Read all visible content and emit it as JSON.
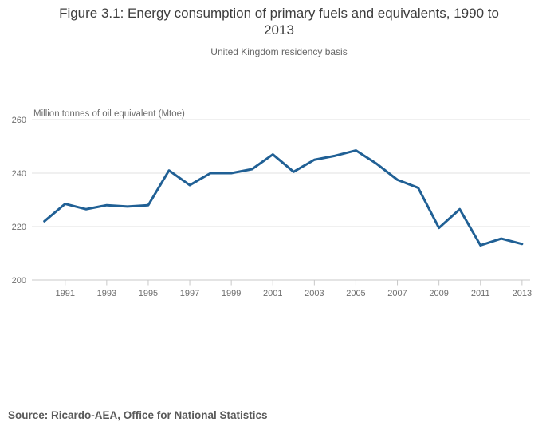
{
  "page": {
    "title": "Figure 3.1: Energy consumption of primary fuels and equivalents, 1990 to\n2013",
    "subtitle": "United Kingdom residency basis",
    "source": "Source: Ricardo-AEA, Office for National Statistics"
  },
  "colors": {
    "line": "#206095",
    "grid": "#e2e2e2",
    "axis": "#c8c8c8",
    "tick_label": "#6e6e6e",
    "title": "#3d3d3d",
    "subtitle": "#666666",
    "source": "#595959"
  },
  "chart_data": {
    "type": "line",
    "title": "Figure 3.1: Energy consumption of primary fuels and equivalents, 1990 to 2013",
    "subtitle": "United Kingdom residency basis",
    "ylabel": "Million tonnes of oil equivalent (Mtoe)",
    "xlabel": "",
    "x": [
      1990,
      1991,
      1992,
      1993,
      1994,
      1995,
      1996,
      1997,
      1998,
      1999,
      2000,
      2001,
      2002,
      2003,
      2004,
      2005,
      2006,
      2007,
      2008,
      2009,
      2010,
      2011,
      2012,
      2013
    ],
    "series": [
      {
        "name": "Energy consumption of primary fuels and equivalents",
        "values": [
          222,
          228.5,
          226.5,
          228,
          227.5,
          228,
          241,
          235.5,
          240,
          240,
          241.5,
          247,
          240.5,
          245,
          246.5,
          248.5,
          243.5,
          237.5,
          234.5,
          219.5,
          226.5,
          213,
          215.5,
          213.5
        ]
      }
    ],
    "ylim": [
      200,
      260
    ],
    "yticks": [
      200,
      220,
      240,
      260
    ],
    "xticks": [
      1991,
      1993,
      1995,
      1997,
      1999,
      2001,
      2003,
      2005,
      2007,
      2009,
      2011,
      2013
    ],
    "grid": true,
    "legend": "none",
    "source": "Source: Ricardo-AEA, Office for National Statistics"
  }
}
